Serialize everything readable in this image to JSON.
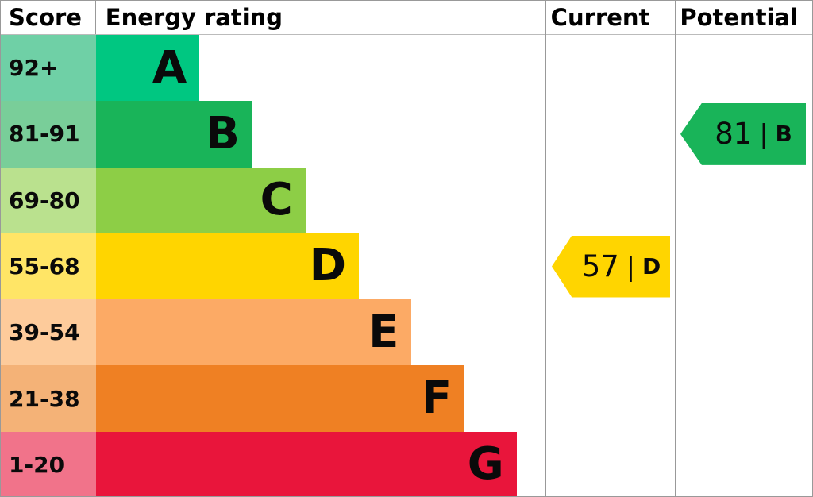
{
  "header": {
    "score": "Score",
    "energy_rating": "Energy rating",
    "current": "Current",
    "potential": "Potential"
  },
  "chart_data": {
    "type": "bar",
    "title": "Energy rating",
    "categories": [
      "A",
      "B",
      "C",
      "D",
      "E",
      "F",
      "G"
    ],
    "bands": [
      {
        "letter": "A",
        "range": "92+",
        "color": "#00c781",
        "score_color": "#6fd0a6",
        "bar_width_pct": 23
      },
      {
        "letter": "B",
        "range": "81-91",
        "color": "#19b459",
        "score_color": "#79ce99",
        "bar_width_pct": 34.8
      },
      {
        "letter": "C",
        "range": "69-80",
        "color": "#8dce46",
        "score_color": "#bae18e",
        "bar_width_pct": 46.6
      },
      {
        "letter": "D",
        "range": "55-68",
        "color": "#ffd500",
        "score_color": "#ffe566",
        "bar_width_pct": 58.5
      },
      {
        "letter": "E",
        "range": "39-54",
        "color": "#fcaa65",
        "score_color": "#fdcb9b",
        "bar_width_pct": 70.2
      },
      {
        "letter": "F",
        "range": "21-38",
        "color": "#ef8023",
        "score_color": "#f4b277",
        "bar_width_pct": 82
      },
      {
        "letter": "G",
        "range": "1-20",
        "color": "#e9153b",
        "score_color": "#f1738a",
        "bar_width_pct": 93.6
      }
    ],
    "current": {
      "value": "57",
      "letter": "D",
      "separator": "|",
      "row_index": 3,
      "color": "#ffd500"
    },
    "potential": {
      "value": "81",
      "letter": "B",
      "separator": "|",
      "row_index": 1,
      "color": "#19b459"
    }
  }
}
